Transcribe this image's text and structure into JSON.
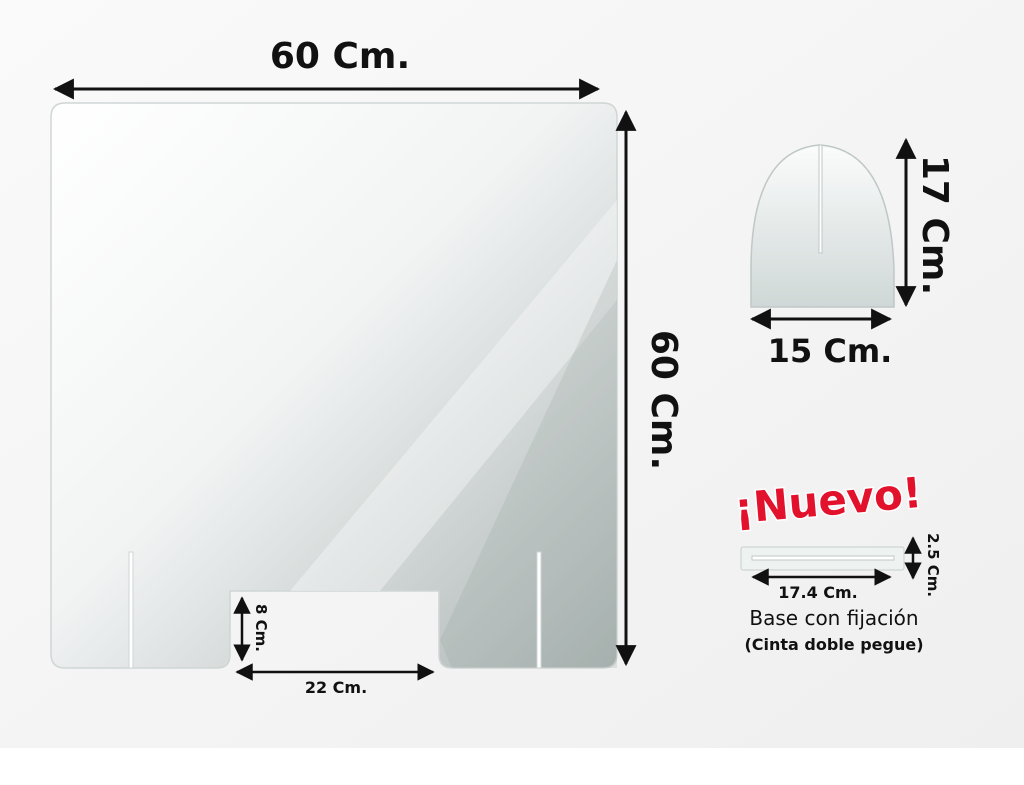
{
  "panel": {
    "width_label": "60 Cm.",
    "height_label": "60 Cm.",
    "notch_height_label": "8 Cm.",
    "notch_width_label": "22 Cm."
  },
  "foot": {
    "height_label": "17 Cm.",
    "width_label": "15 Cm."
  },
  "base": {
    "badge": "¡Nuevo!",
    "width_label": "17.4 Cm.",
    "height_label": "2.5 Cm.",
    "title": "Base con fijación",
    "subtitle": "(Cinta doble pegue)"
  },
  "colors": {
    "badge": "#e3122c",
    "text": "#111111",
    "background": "#f3f3f3"
  }
}
